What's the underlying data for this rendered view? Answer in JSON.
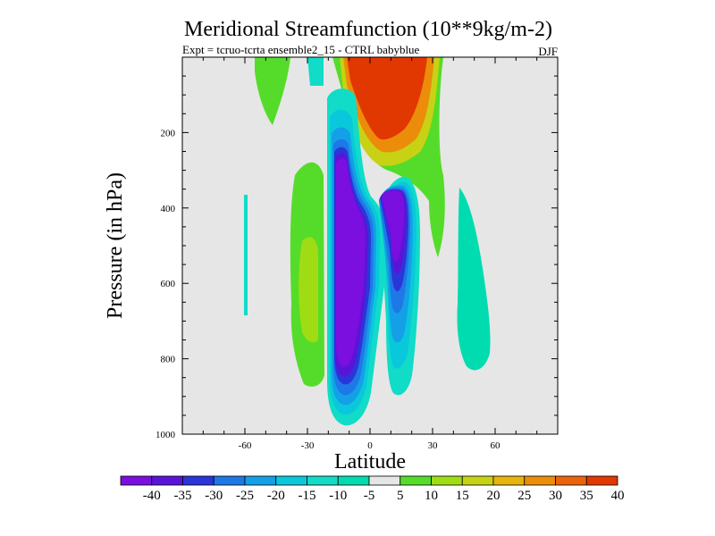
{
  "chart_data": {
    "type": "heatmap",
    "title": "Meridional Streamfunction (10**9kg/m-2)",
    "subtitle": "Expt = tcruo-tcrta  ensemble2_15 - CTRL babyblue",
    "season": "DJF",
    "xlabel": "Latitude",
    "ylabel": "Pressure (in hPa)",
    "xlim": [
      -90,
      90
    ],
    "ylim": [
      1000,
      0
    ],
    "y_inverted": true,
    "x_ticks": [
      -60,
      -30,
      0,
      30,
      60
    ],
    "x_tick_labels": [
      "-60",
      "-30",
      "0",
      "30",
      "60"
    ],
    "y_ticks": [
      200,
      400,
      600,
      800,
      1000
    ],
    "y_tick_labels": [
      "200",
      "400",
      "600",
      "800",
      "1000"
    ],
    "background_color": "#e6e6e6",
    "colorbar": {
      "levels": [
        -40,
        -35,
        -30,
        -25,
        -20,
        -15,
        -10,
        -5,
        5,
        10,
        15,
        20,
        25,
        30,
        35,
        40
      ],
      "level_labels": [
        "-40",
        "-35",
        "-30",
        "-25",
        "-20",
        "-15",
        "-10",
        "-5",
        "5",
        "10",
        "15",
        "20",
        "25",
        "30",
        "35",
        "40"
      ],
      "colors": [
        "#7a0fe0",
        "#5a14d8",
        "#2a36d8",
        "#1e78e6",
        "#14a0e6",
        "#0ac8dc",
        "#10dcc8",
        "#00dcb0",
        "#e6e6e6",
        "#55dc2a",
        "#a0dc14",
        "#c8d214",
        "#e6b40a",
        "#eb8c0a",
        "#eb640a",
        "#e13700"
      ]
    },
    "contour_regions": [
      {
        "label": "upper tropical positive cell",
        "sign": "positive",
        "approx_max": 40,
        "lat_range": [
          0,
          30
        ],
        "pressure_range": [
          0,
          250
        ]
      },
      {
        "label": "south tropical negative cell",
        "sign": "negative",
        "approx_min": -40,
        "lat_range": [
          -20,
          -5
        ],
        "pressure_range": [
          150,
          950
        ]
      },
      {
        "label": "north tropical negative cell",
        "sign": "negative",
        "approx_min": -35,
        "lat_range": [
          5,
          20
        ],
        "pressure_range": [
          320,
          650
        ]
      },
      {
        "label": "southern subtropical positive cell",
        "sign": "positive",
        "approx_max": 15,
        "lat_range": [
          -35,
          -20
        ],
        "pressure_range": [
          280,
          870
        ]
      },
      {
        "label": "northern mid-latitude negative cell",
        "sign": "negative",
        "approx_min": -10,
        "lat_range": [
          42,
          55
        ],
        "pressure_range": [
          420,
          820
        ]
      }
    ]
  }
}
